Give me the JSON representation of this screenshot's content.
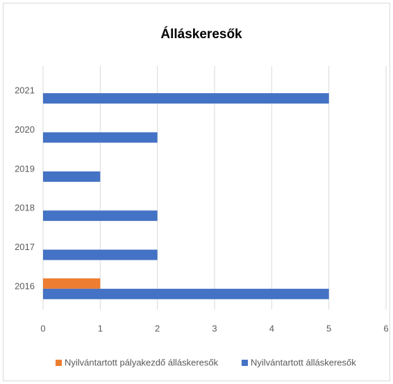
{
  "chart_data": {
    "type": "hbar",
    "title": "Álláskeresők",
    "categories": [
      "2016",
      "2017",
      "2018",
      "2019",
      "2020",
      "2021"
    ],
    "series": [
      {
        "name": "Nyilvántartott pályakezdő álláskeresők",
        "color": "#ed7d31",
        "values": [
          1,
          0,
          0,
          0,
          0,
          0
        ]
      },
      {
        "name": "Nyilvántartott álláskeresők",
        "color": "#4472c4",
        "values": [
          5,
          2,
          2,
          1,
          2,
          5
        ]
      }
    ],
    "xlim": [
      0,
      6
    ],
    "xticks": [
      0,
      1,
      2,
      3,
      4,
      5,
      6
    ],
    "grid": true,
    "legend": "bottom"
  }
}
